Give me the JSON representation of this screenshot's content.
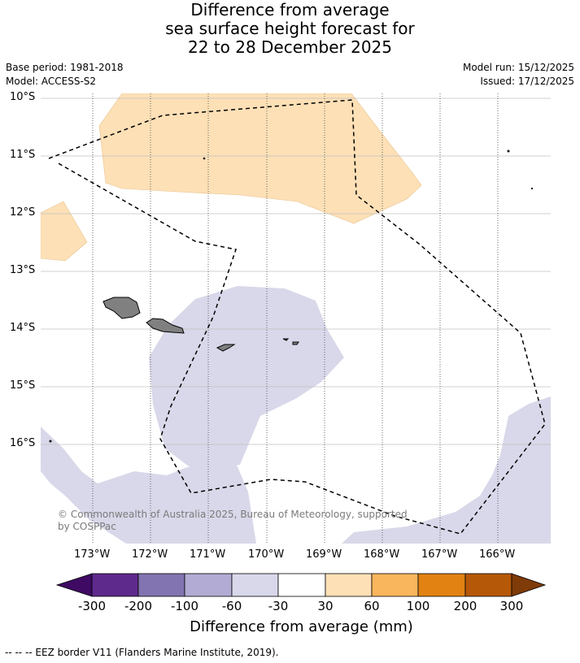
{
  "title": {
    "line1": "Difference from average",
    "line2": "sea surface height forecast for",
    "line3": "22 to 28 December 2025"
  },
  "meta": {
    "base_period": "Base period: 1981-2018",
    "model": "Model: ACCESS-S2",
    "model_run": "Model run: 15/12/2025",
    "issued": "Issued: 17/12/2025"
  },
  "map": {
    "lat_labels": [
      "10°S",
      "11°S",
      "12°S",
      "13°S",
      "14°S",
      "15°S",
      "16°S"
    ],
    "lon_labels": [
      "173°W",
      "172°W",
      "171°W",
      "170°W",
      "169°W",
      "168°W",
      "167°W",
      "166°W"
    ],
    "copyright": "© Commonwealth of Australia 2025, Bureau of Meteorology, supported by COSPPac",
    "colors": {
      "positive_30_60": "#fde0b6",
      "negative_30_60": "#d8d8ea",
      "land": "#808080",
      "gridline": "#b0b0b0",
      "eez": "#000000"
    }
  },
  "colorbar": {
    "ticks": [
      "-300",
      "-200",
      "-100",
      "-60",
      "-30",
      "30",
      "60",
      "100",
      "200",
      "300"
    ],
    "colors": [
      "#3f0a63",
      "#5e2a8c",
      "#8274b0",
      "#b2abd3",
      "#d8d8ea",
      "#ffffff",
      "#fde0b6",
      "#f9b65c",
      "#e18213",
      "#b55808",
      "#7f3b08"
    ],
    "label": "Difference from average (mm)"
  },
  "footnote": "--  --  -- EEZ border V11 (Flanders Marine Institute, 2019)."
}
